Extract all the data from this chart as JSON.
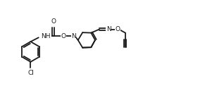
{
  "background_color": "#ffffff",
  "line_color": "#1a1a1a",
  "line_width": 1.3,
  "figsize": [
    2.91,
    1.22
  ],
  "dpi": 100,
  "xlim": [
    0,
    10.5
  ],
  "ylim": [
    0,
    4.2
  ],
  "font_size": 6.5
}
